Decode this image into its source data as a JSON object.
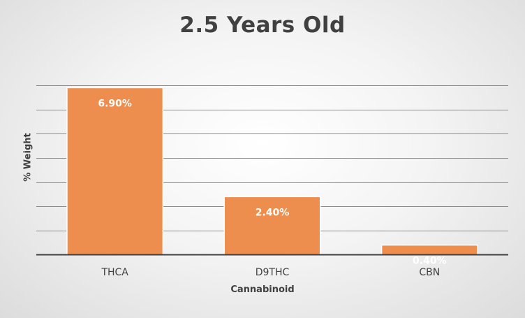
{
  "chart_data": {
    "type": "bar",
    "title": "2.5 Years Old",
    "xlabel": "Cannabinoid",
    "ylabel": "% Weight",
    "categories": [
      "THCA",
      "D9THC",
      "CBN"
    ],
    "values": [
      6.9,
      2.4,
      0.4
    ],
    "data_labels": [
      "6.90%",
      "2.40%",
      "0.40%"
    ],
    "ylim": [
      0,
      7
    ],
    "y_gridline_step": 1,
    "y_tick_labels_shown": false,
    "grid": true,
    "legend": "none",
    "colors": {
      "bar_fill": "#ED8D4E",
      "bar_border": "#ffffff",
      "gridline": "#8c8c8c",
      "axis_line": "#404040",
      "text": "#404040",
      "data_label": "#ffffff"
    }
  }
}
